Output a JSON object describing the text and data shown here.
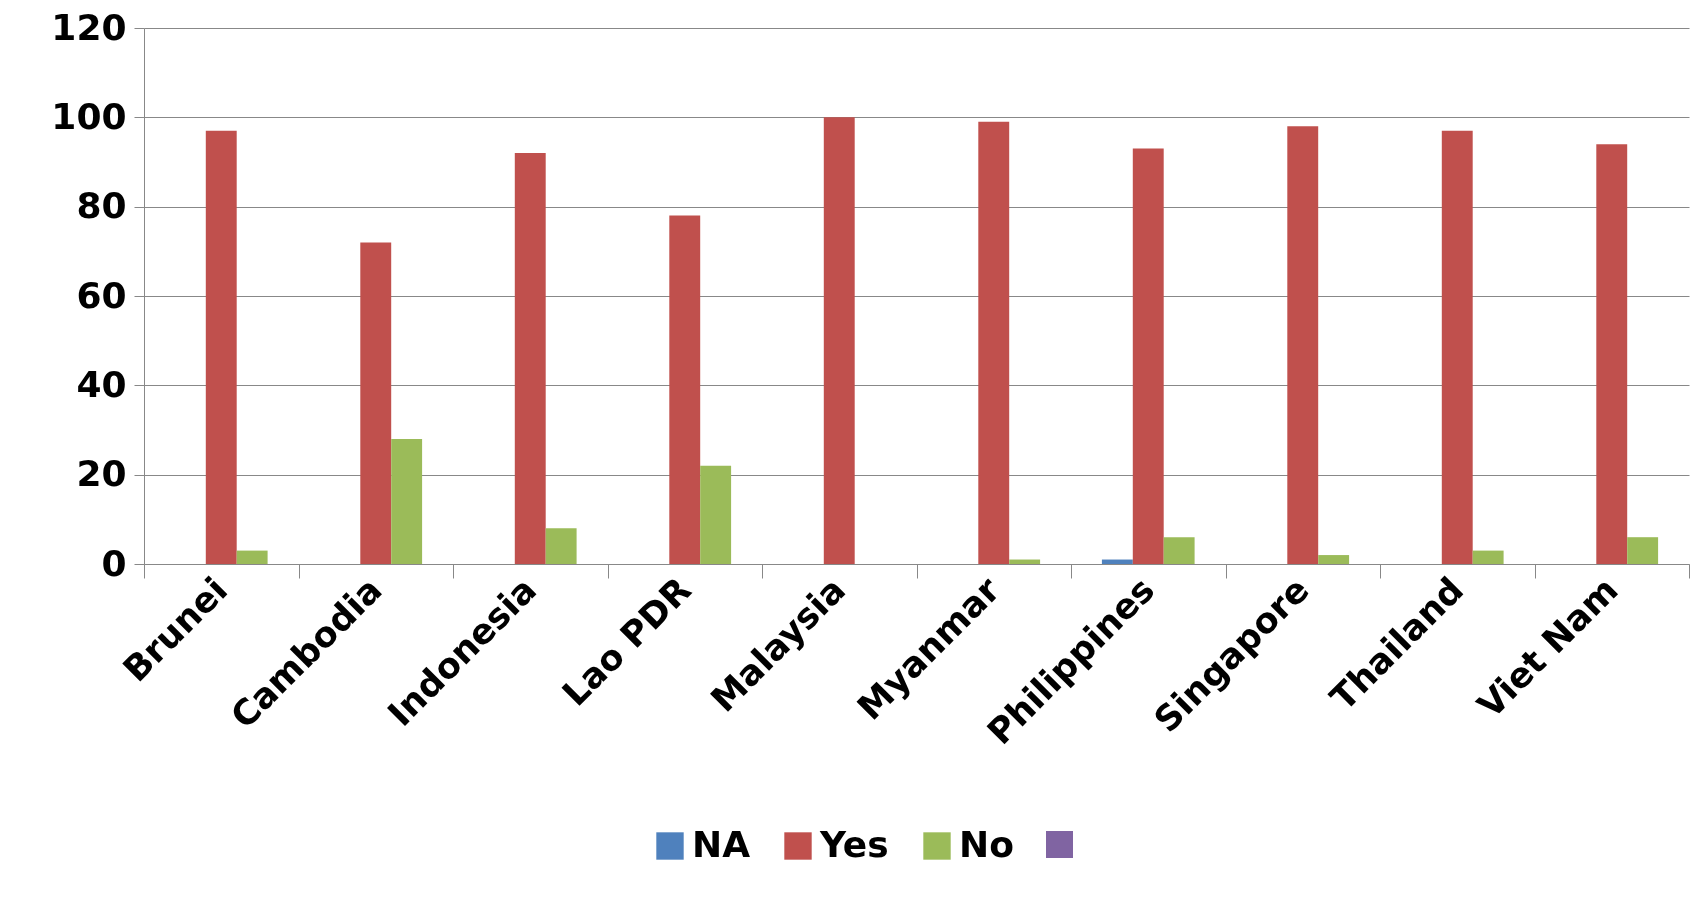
{
  "chart_data": {
    "type": "bar",
    "categories": [
      "Brunei",
      "Cambodia",
      "Indonesia",
      "Lao PDR",
      "Malaysia",
      "Myanmar",
      "Philippines",
      "Singapore",
      "Thailand",
      "Viet Nam"
    ],
    "series": [
      {
        "name": "NA",
        "color": "#4f81bd",
        "values": [
          null,
          null,
          null,
          null,
          null,
          null,
          1,
          null,
          null,
          null
        ]
      },
      {
        "name": "Yes",
        "color": "#c0504d",
        "values": [
          97,
          72,
          92,
          78,
          100,
          99,
          93,
          98,
          97,
          94
        ]
      },
      {
        "name": "No",
        "color": "#9bbb59",
        "values": [
          3,
          28,
          8,
          22,
          null,
          1,
          6,
          2,
          3,
          6
        ]
      }
    ],
    "ylim": [
      0,
      120
    ],
    "yticks": [
      0,
      20,
      40,
      60,
      80,
      100,
      120
    ],
    "grid": "y",
    "legend": "bottom"
  }
}
